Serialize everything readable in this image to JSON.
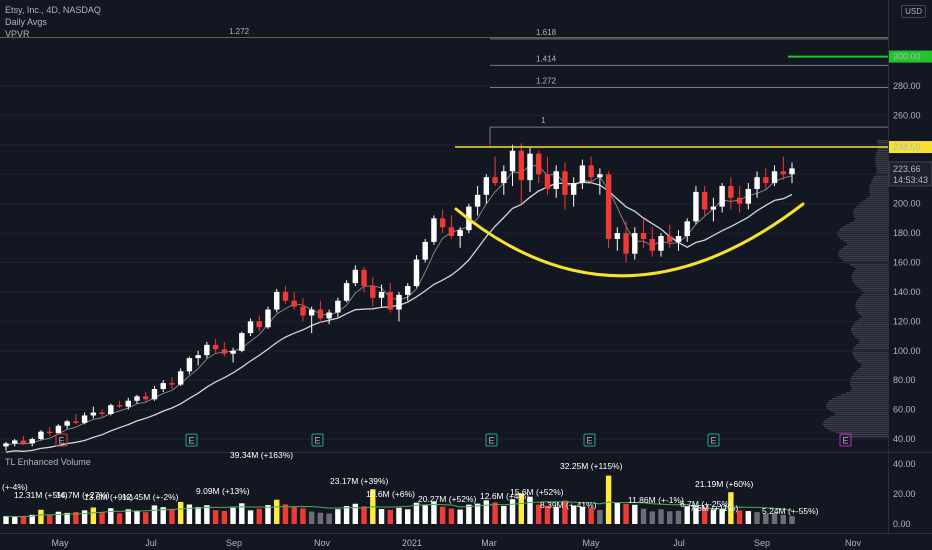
{
  "header": {
    "symbol_line": "Etsy, Inc., 4D, NASDAQ",
    "indicator1": "Daily Avgs",
    "indicator2": "VPVR",
    "currency": "USD"
  },
  "volume_pane": {
    "title": "TL Enhanced Volume"
  },
  "colors": {
    "background": "#131722",
    "up": "#ffffff",
    "down": "#ef3a36",
    "high_volume": "#ffeb3b",
    "ma": "#d1d4dc",
    "cup": "#f5e12e",
    "resistance": "#f5e12e",
    "target": "#22c42b",
    "fib": "#787b86"
  },
  "chart_data": {
    "type": "candlestick",
    "y_axis": {
      "ticks": [
        "40.00",
        "60.00",
        "80.00",
        "100.00",
        "120.00",
        "140.00",
        "160.00",
        "180.00",
        "200.00",
        "220.00",
        "240.00",
        "260.00",
        "280.00"
      ],
      "ylim": [
        36,
        318
      ]
    },
    "x_axis": {
      "ticks": [
        "May",
        "Jul",
        "Sep",
        "Nov",
        "2021",
        "Mar",
        "May",
        "Jul",
        "Sep",
        "Nov"
      ]
    },
    "price_labels": {
      "resistance": "238.50",
      "last": "223.66",
      "countdown": "14:53:43",
      "target": "300.00"
    },
    "fib_levels": [
      {
        "label": "1.618",
        "value": 312
      },
      {
        "label": "1.414",
        "value": 294
      },
      {
        "label": "1.272",
        "value": 279
      },
      {
        "label": "1",
        "value": 252
      }
    ],
    "left_fib_label": "1.272",
    "earnings_markers": [
      "E",
      "E",
      "E",
      "E",
      "E",
      "E",
      "E"
    ],
    "volume_y_ticks": [
      "40.00",
      "20.00",
      "0.00"
    ],
    "volume_labels": [
      "39.34M (+163%)",
      "23.17M (+39%)",
      "32.25M (+115%)",
      "21.19M (+60%)",
      "11.86M (+-1%)",
      "8.39M (+-41%)",
      "5.24M (+-55%)",
      "9.09M (+13%)",
      "12.45M (+-2%)",
      "14.7M (+27%)",
      "12.31M (+5%)",
      "13.8M (+9%)",
      "10.6M (+6%)",
      "20.27M (+52%)",
      "12.6M (+4%)",
      "15.6M (+52%)",
      "6.7M (+-25%)",
      "7.5M (+11%)",
      "(+-4%)"
    ],
    "candles": [
      [
        35,
        38,
        32,
        37,
        5.2
      ],
      [
        37,
        40,
        35,
        39,
        4.8
      ],
      [
        39,
        42,
        36,
        37,
        5.0
      ],
      [
        37,
        41,
        35,
        40,
        6.1
      ],
      [
        40,
        46,
        39,
        45,
        9.5
      ],
      [
        45,
        48,
        42,
        44,
        6.0
      ],
      [
        44,
        50,
        43,
        49,
        8.2
      ],
      [
        49,
        53,
        47,
        52,
        7.4
      ],
      [
        52,
        57,
        50,
        51,
        8.0
      ],
      [
        51,
        58,
        50,
        56,
        9.1
      ],
      [
        56,
        62,
        54,
        58,
        11.0
      ],
      [
        58,
        60,
        55,
        57,
        7.8
      ],
      [
        57,
        64,
        56,
        63,
        10.5
      ],
      [
        63,
        66,
        61,
        62,
        7.2
      ],
      [
        62,
        68,
        60,
        66,
        9.8
      ],
      [
        66,
        70,
        64,
        69,
        8.6
      ],
      [
        69,
        72,
        65,
        67,
        7.9
      ],
      [
        67,
        76,
        66,
        74,
        12.4
      ],
      [
        74,
        80,
        72,
        78,
        11.2
      ],
      [
        78,
        82,
        74,
        77,
        10.1
      ],
      [
        77,
        88,
        76,
        86,
        14.7
      ],
      [
        86,
        96,
        84,
        95,
        13.0
      ],
      [
        95,
        100,
        90,
        97,
        11.3
      ],
      [
        97,
        106,
        95,
        104,
        12.5
      ],
      [
        104,
        108,
        98,
        101,
        9.2
      ],
      [
        101,
        106,
        96,
        98,
        8.7
      ],
      [
        98,
        102,
        92,
        100,
        10.9
      ],
      [
        100,
        113,
        99,
        112,
        13.8
      ],
      [
        112,
        122,
        110,
        120,
        9.1
      ],
      [
        120,
        124,
        113,
        116,
        10.2
      ],
      [
        116,
        130,
        115,
        128,
        12.6
      ],
      [
        128,
        142,
        126,
        140,
        16.2
      ],
      [
        140,
        144,
        132,
        134,
        13.1
      ],
      [
        134,
        140,
        128,
        130,
        11.4
      ],
      [
        130,
        136,
        120,
        124,
        10.4
      ],
      [
        124,
        130,
        112,
        128,
        8.3
      ],
      [
        128,
        134,
        119,
        122,
        7.5
      ],
      [
        122,
        128,
        118,
        126,
        6.9
      ],
      [
        126,
        136,
        123,
        134,
        9.9
      ],
      [
        134,
        148,
        133,
        146,
        12.0
      ],
      [
        146,
        158,
        144,
        155,
        13.5
      ],
      [
        155,
        157,
        140,
        144,
        11.8
      ],
      [
        144,
        150,
        130,
        136,
        23.17
      ],
      [
        136,
        145,
        130,
        140,
        10.0
      ],
      [
        140,
        146,
        126,
        128,
        9.4
      ],
      [
        128,
        140,
        120,
        138,
        10.8
      ],
      [
        138,
        146,
        134,
        144,
        9.8
      ],
      [
        144,
        165,
        143,
        162,
        14.2
      ],
      [
        162,
        176,
        160,
        174,
        12.6
      ],
      [
        174,
        192,
        172,
        190,
        15.1
      ],
      [
        190,
        196,
        180,
        184,
        11.5
      ],
      [
        184,
        192,
        176,
        178,
        10.3
      ],
      [
        178,
        184,
        170,
        182,
        9.6
      ],
      [
        182,
        200,
        180,
        198,
        12.9
      ],
      [
        198,
        212,
        192,
        206,
        13.6
      ],
      [
        206,
        220,
        200,
        218,
        15.8
      ],
      [
        218,
        232,
        212,
        214,
        14.4
      ],
      [
        214,
        226,
        206,
        222,
        12.0
      ],
      [
        222,
        240,
        212,
        236,
        16.5
      ],
      [
        236,
        241,
        200,
        216,
        20.27
      ],
      [
        216,
        238,
        208,
        234,
        18.2
      ],
      [
        234,
        236,
        214,
        220,
        13.0
      ],
      [
        220,
        232,
        206,
        210,
        12.2
      ],
      [
        210,
        226,
        204,
        222,
        11.4
      ],
      [
        222,
        228,
        196,
        206,
        15.6
      ],
      [
        206,
        218,
        198,
        214,
        12.1
      ],
      [
        214,
        230,
        210,
        226,
        11.5
      ],
      [
        226,
        232,
        214,
        218,
        10.7
      ],
      [
        218,
        224,
        206,
        220,
        9.3
      ],
      [
        220,
        222,
        170,
        176,
        32.25
      ],
      [
        176,
        184,
        168,
        180,
        14.3
      ],
      [
        180,
        188,
        160,
        166,
        13.4
      ],
      [
        166,
        184,
        162,
        180,
        12.8
      ],
      [
        180,
        190,
        170,
        176,
        10.2
      ],
      [
        176,
        184,
        164,
        168,
        8.39
      ],
      [
        168,
        180,
        164,
        178,
        9.8
      ],
      [
        178,
        186,
        170,
        174,
        8.5
      ],
      [
        174,
        182,
        168,
        178,
        8.8
      ],
      [
        178,
        190,
        174,
        188,
        11.86
      ],
      [
        188,
        212,
        186,
        208,
        12.3
      ],
      [
        208,
        212,
        192,
        196,
        11.0
      ],
      [
        196,
        204,
        188,
        198,
        9.7
      ],
      [
        198,
        214,
        194,
        212,
        10.2
      ],
      [
        212,
        218,
        196,
        204,
        21.19
      ],
      [
        204,
        212,
        194,
        200,
        9.0
      ],
      [
        200,
        214,
        196,
        210,
        8.6
      ],
      [
        210,
        222,
        204,
        218,
        7.9
      ],
      [
        218,
        224,
        210,
        214,
        6.7
      ],
      [
        214,
        226,
        212,
        222,
        7.5
      ],
      [
        222,
        232,
        216,
        220,
        6.1
      ],
      [
        220,
        228,
        214,
        224,
        5.24
      ]
    ]
  }
}
